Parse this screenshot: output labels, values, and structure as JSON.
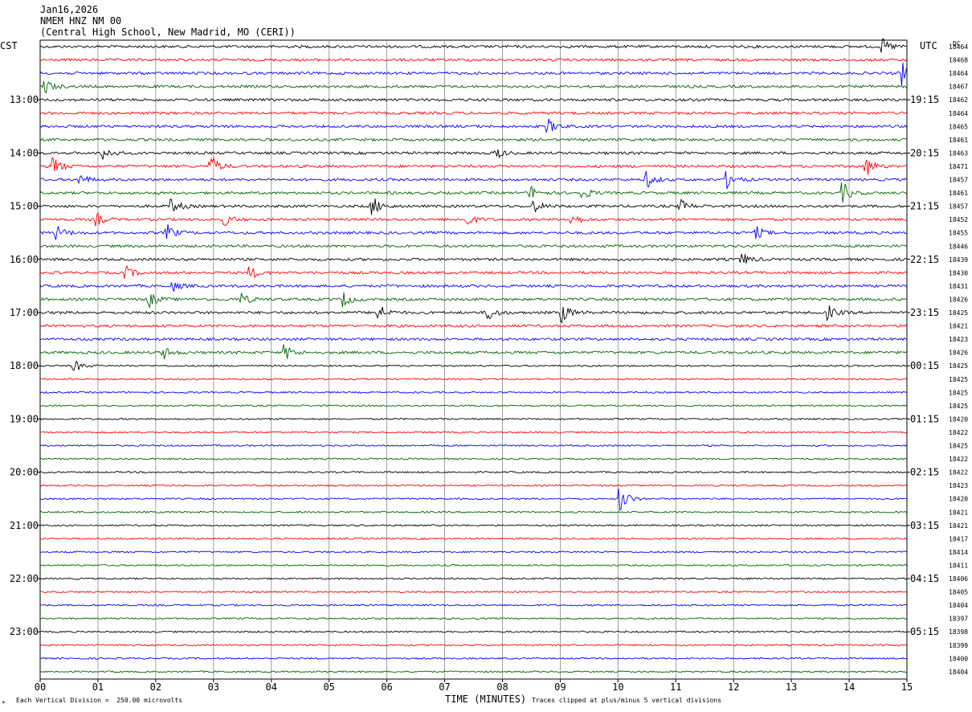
{
  "header": {
    "date": "Jan16,2026",
    "station": "NMEM HNZ NM 00",
    "location": "(Central High School, New Madrid, MO (CERI))"
  },
  "labels": {
    "left_timezone": "CST",
    "right_timezone": "UTC",
    "dc_label": "DC",
    "corner_mark": "*"
  },
  "footer": {
    "scale_note": "Each Vertical Division =  250.00 microvolts",
    "xlabel": "TIME (MINUTES)",
    "clip_note": "Traces clipped at plus/minus 5 vertical divisions"
  },
  "chart_data": {
    "type": "line",
    "title": "NMEM HNZ NM 00",
    "xlabel": "TIME (MINUTES)",
    "x_ticks": [
      "00",
      "01",
      "02",
      "03",
      "04",
      "05",
      "06",
      "07",
      "08",
      "09",
      "10",
      "11",
      "12",
      "13",
      "14",
      "15"
    ],
    "xlim": [
      0,
      15
    ],
    "grid": true,
    "trace_colors": [
      "#000000",
      "#ff0000",
      "#0000ff",
      "#006400"
    ],
    "rows_per_hour": 4,
    "first_hour_offset_rows": 4,
    "left_hour_labels": [
      "13:00",
      "14:00",
      "15:00",
      "16:00",
      "17:00",
      "18:00",
      "19:00",
      "20:00",
      "21:00",
      "22:00",
      "23:00"
    ],
    "right_hour_labels": [
      "19:15",
      "20:15",
      "21:15",
      "22:15",
      "23:15",
      "00:15",
      "01:15",
      "02:15",
      "03:15",
      "04:15",
      "05:15"
    ],
    "dc_offsets": [
      18464,
      18468,
      18464,
      18467,
      18462,
      18464,
      18465,
      18461,
      18463,
      18471,
      18457,
      18461,
      18457,
      18452,
      18455,
      18446,
      18439,
      18430,
      18431,
      18426,
      18425,
      18421,
      18423,
      18426,
      18425,
      18425,
      18425,
      18425,
      18420,
      18422,
      18425,
      18422,
      18422,
      18423,
      18420,
      18421,
      18421,
      18417,
      18414,
      18411,
      18406,
      18405,
      18404,
      18397,
      18398,
      18399,
      18400,
      18404
    ],
    "events": [
      {
        "row": 0,
        "minute": 14.6,
        "amp": 8
      },
      {
        "row": 2,
        "minute": 14.95,
        "amp": 14
      },
      {
        "row": 3,
        "minute": 0.1,
        "amp": 8
      },
      {
        "row": 6,
        "minute": 8.8,
        "amp": 8
      },
      {
        "row": 8,
        "minute": 1.1,
        "amp": 8
      },
      {
        "row": 8,
        "minute": 7.9,
        "amp": 6
      },
      {
        "row": 9,
        "minute": 0.25,
        "amp": 10
      },
      {
        "row": 9,
        "minute": 2.95,
        "amp": 14
      },
      {
        "row": 9,
        "minute": 14.3,
        "amp": 12
      },
      {
        "row": 10,
        "minute": 0.7,
        "amp": 6
      },
      {
        "row": 10,
        "minute": 10.5,
        "amp": 10
      },
      {
        "row": 10,
        "minute": 11.9,
        "amp": 10
      },
      {
        "row": 11,
        "minute": 8.5,
        "amp": 8
      },
      {
        "row": 11,
        "minute": 9.4,
        "amp": 7
      },
      {
        "row": 11,
        "minute": 13.9,
        "amp": 12
      },
      {
        "row": 12,
        "minute": 2.3,
        "amp": 8
      },
      {
        "row": 12,
        "minute": 5.75,
        "amp": 12
      },
      {
        "row": 12,
        "minute": 8.55,
        "amp": 7
      },
      {
        "row": 12,
        "minute": 11.1,
        "amp": 7
      },
      {
        "row": 13,
        "minute": 1.0,
        "amp": 7
      },
      {
        "row": 13,
        "minute": 3.2,
        "amp": 7
      },
      {
        "row": 13,
        "minute": 7.4,
        "amp": 7
      },
      {
        "row": 13,
        "minute": 9.2,
        "amp": 7
      },
      {
        "row": 14,
        "minute": 0.3,
        "amp": 8
      },
      {
        "row": 14,
        "minute": 2.2,
        "amp": 10
      },
      {
        "row": 14,
        "minute": 12.4,
        "amp": 7
      },
      {
        "row": 16,
        "minute": 12.15,
        "amp": 8
      },
      {
        "row": 17,
        "minute": 1.5,
        "amp": 7
      },
      {
        "row": 17,
        "minute": 3.65,
        "amp": 7
      },
      {
        "row": 18,
        "minute": 2.3,
        "amp": 6
      },
      {
        "row": 19,
        "minute": 1.9,
        "amp": 9
      },
      {
        "row": 19,
        "minute": 3.5,
        "amp": 7
      },
      {
        "row": 19,
        "minute": 5.25,
        "amp": 9
      },
      {
        "row": 20,
        "minute": 5.85,
        "amp": 11
      },
      {
        "row": 20,
        "minute": 7.75,
        "amp": 10
      },
      {
        "row": 20,
        "minute": 9.05,
        "amp": 11
      },
      {
        "row": 20,
        "minute": 13.65,
        "amp": 8
      },
      {
        "row": 23,
        "minute": 2.15,
        "amp": 7
      },
      {
        "row": 23,
        "minute": 4.25,
        "amp": 9
      },
      {
        "row": 24,
        "minute": 0.6,
        "amp": 7
      },
      {
        "row": 34,
        "minute": 10.05,
        "amp": 15
      }
    ]
  }
}
